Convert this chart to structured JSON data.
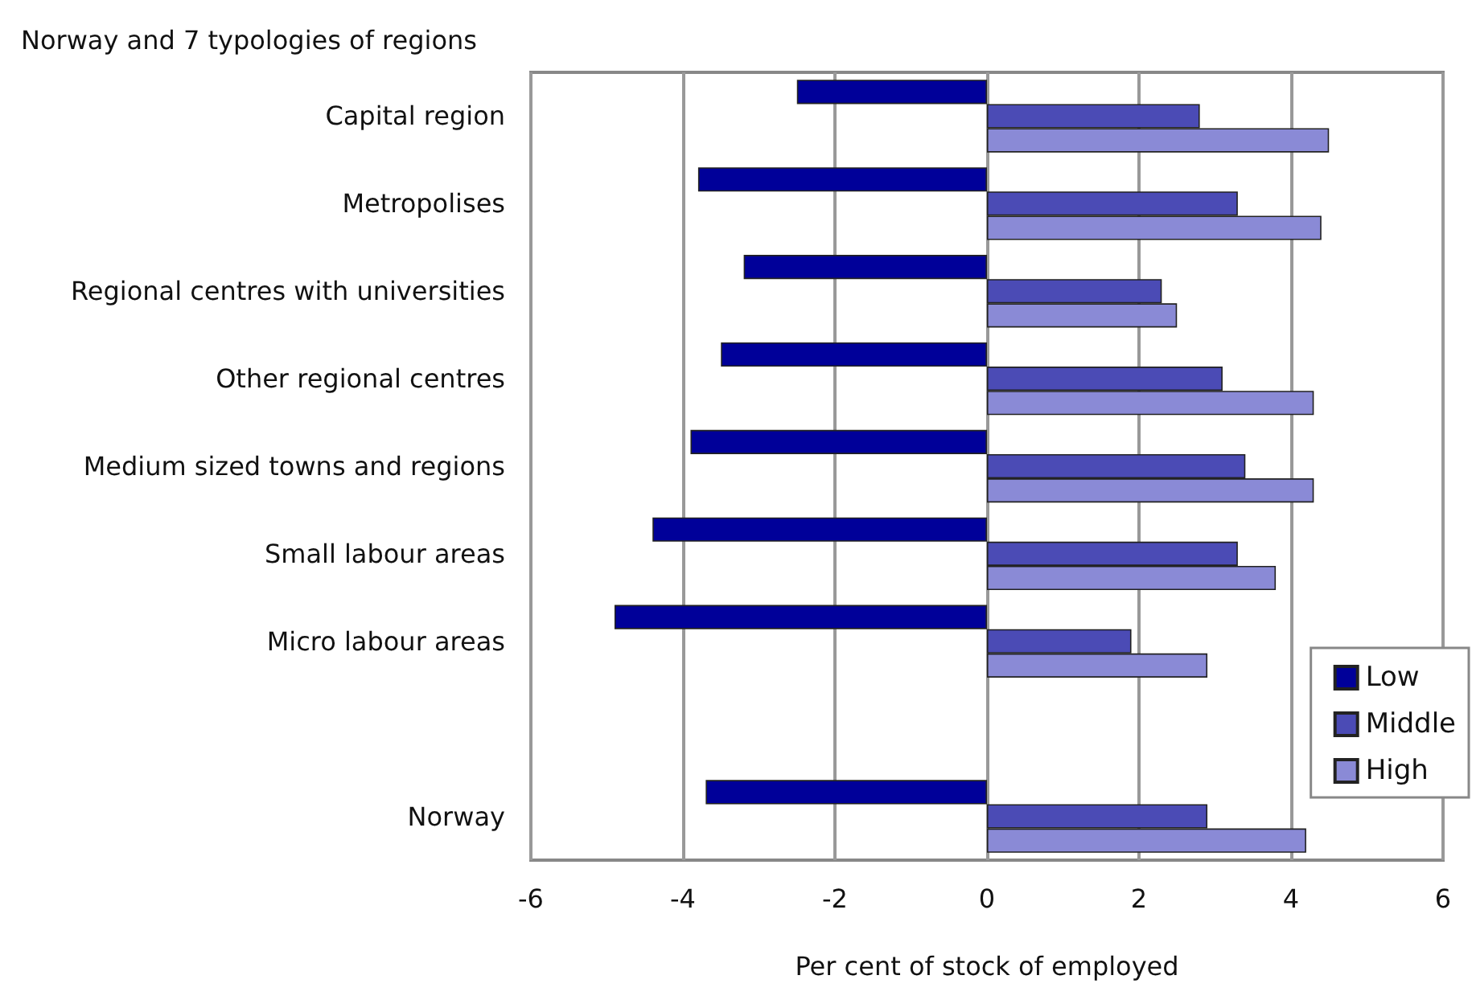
{
  "chart_data": {
    "type": "bar",
    "orientation": "horizontal",
    "title": "Norway and 7 typologies of regions",
    "xlabel": "Per cent of stock of employed",
    "categories": [
      "Capital region",
      "Metropolises",
      "Regional centres with universities",
      "Other regional centres",
      "Medium sized towns and regions",
      "Small labour areas",
      "Micro labour areas",
      null,
      "Norway"
    ],
    "series": [
      {
        "name": "Low",
        "color": "#000099",
        "values": [
          -2.5,
          -3.8,
          -3.2,
          -3.5,
          -3.9,
          -4.4,
          -4.9,
          null,
          -3.7
        ]
      },
      {
        "name": "Middle",
        "color": "#4b4bb5",
        "values": [
          2.8,
          3.3,
          2.3,
          3.1,
          3.4,
          3.3,
          1.9,
          null,
          2.9
        ]
      },
      {
        "name": "High",
        "color": "#8a8ad6",
        "values": [
          4.5,
          4.4,
          2.5,
          4.3,
          4.3,
          3.8,
          2.9,
          null,
          4.2
        ]
      }
    ],
    "xlim": [
      -6,
      6
    ],
    "xticks": [
      -6,
      -4,
      -2,
      0,
      2,
      4,
      6
    ],
    "grid": "x",
    "legend": "right"
  }
}
